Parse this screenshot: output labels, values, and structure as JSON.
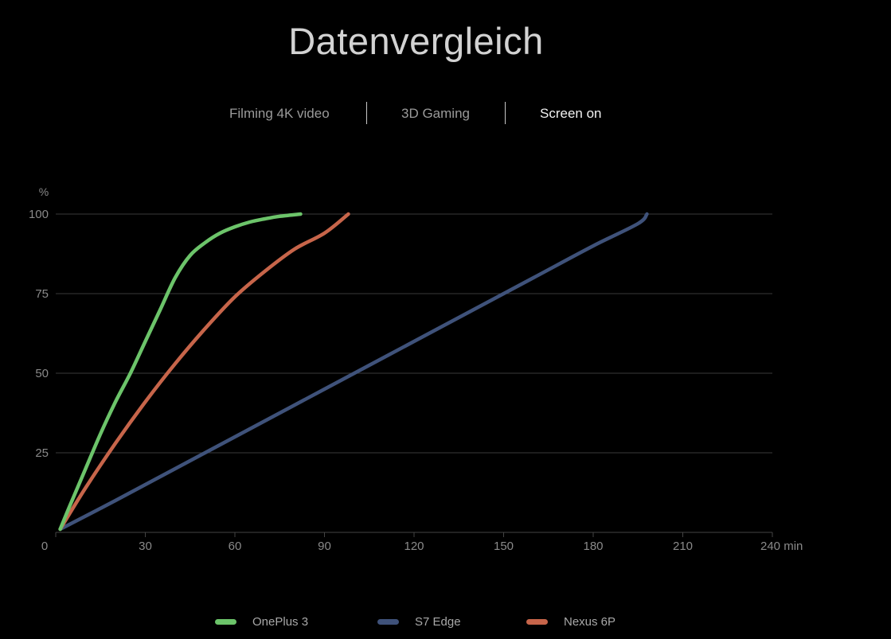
{
  "header": {
    "title": "Datenvergleich"
  },
  "tabs": [
    {
      "label": "Filming 4K video",
      "active": false
    },
    {
      "label": "3D Gaming",
      "active": false
    },
    {
      "label": "Screen on",
      "active": true
    }
  ],
  "chart_data": {
    "type": "line",
    "title": "",
    "xlabel": "min",
    "ylabel": "%",
    "xlim": [
      0,
      240
    ],
    "ylim": [
      0,
      100
    ],
    "xticks": [
      0,
      30,
      60,
      90,
      120,
      150,
      180,
      210,
      240
    ],
    "xtick_labels": [
      "0",
      "30",
      "60",
      "90",
      "120",
      "150",
      "180",
      "210",
      "240 min"
    ],
    "yticks": [
      25,
      50,
      75,
      100
    ],
    "ytick_labels": [
      "25",
      "50",
      "75",
      "100"
    ],
    "grid": true,
    "legend_position": "bottom",
    "series": [
      {
        "name": "OnePlus 3",
        "color": "#6cc46a",
        "points": [
          [
            1.5,
            1
          ],
          [
            5,
            9
          ],
          [
            10,
            20
          ],
          [
            15,
            31
          ],
          [
            20,
            41
          ],
          [
            25,
            50
          ],
          [
            30,
            60
          ],
          [
            35,
            70
          ],
          [
            40,
            80
          ],
          [
            45,
            87
          ],
          [
            50,
            91
          ],
          [
            55,
            94
          ],
          [
            60,
            96
          ],
          [
            65,
            97.5
          ],
          [
            70,
            98.5
          ],
          [
            75,
            99.3
          ],
          [
            82,
            100
          ]
        ]
      },
      {
        "name": "S7 Edge",
        "color": "#3f527a",
        "points": [
          [
            1.5,
            1
          ],
          [
            20,
            10
          ],
          [
            40,
            20
          ],
          [
            60,
            30
          ],
          [
            80,
            40
          ],
          [
            100,
            50
          ],
          [
            120,
            60
          ],
          [
            140,
            70
          ],
          [
            160,
            80
          ],
          [
            180,
            90
          ],
          [
            195,
            97
          ],
          [
            198,
            100
          ]
        ]
      },
      {
        "name": "Nexus 6P",
        "color": "#c7654a",
        "points": [
          [
            1.5,
            1
          ],
          [
            10,
            14
          ],
          [
            20,
            28
          ],
          [
            30,
            41
          ],
          [
            40,
            53
          ],
          [
            50,
            64
          ],
          [
            60,
            74
          ],
          [
            70,
            82
          ],
          [
            80,
            89
          ],
          [
            90,
            94
          ],
          [
            98,
            100
          ]
        ]
      }
    ]
  }
}
